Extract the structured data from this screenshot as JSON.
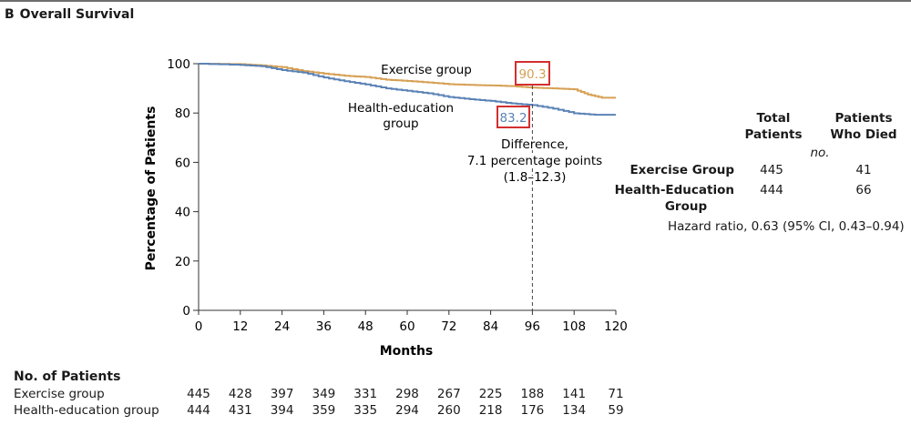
{
  "panel": {
    "letter": "B",
    "title": "Overall Survival"
  },
  "chart_data": {
    "type": "line",
    "title": "Overall Survival",
    "xlabel": "Months",
    "ylabel": "Percentage of Patients",
    "xlim": [
      0,
      120
    ],
    "ylim": [
      0,
      100
    ],
    "xticks": [
      0,
      12,
      24,
      36,
      48,
      60,
      72,
      84,
      96,
      108,
      120
    ],
    "yticks": [
      0,
      20,
      40,
      60,
      80,
      100
    ],
    "series": [
      {
        "name": "Exercise group",
        "color": "#d6a054",
        "points": [
          [
            0,
            100
          ],
          [
            12,
            99.8
          ],
          [
            18,
            99.3
          ],
          [
            24,
            98.6
          ],
          [
            30,
            97
          ],
          [
            36,
            96
          ],
          [
            42,
            95.1
          ],
          [
            48,
            94.6
          ],
          [
            54,
            93.5
          ],
          [
            60,
            93
          ],
          [
            66,
            92.4
          ],
          [
            72,
            91.7
          ],
          [
            78,
            91.4
          ],
          [
            84,
            91.2
          ],
          [
            90,
            90.9
          ],
          [
            96,
            90.3
          ],
          [
            102,
            90
          ],
          [
            108,
            89.6
          ],
          [
            112,
            87.5
          ],
          [
            116,
            86.2
          ],
          [
            120,
            86.2
          ]
        ]
      },
      {
        "name": "Health-education group",
        "color": "#5b82b5",
        "points": [
          [
            0,
            100
          ],
          [
            12,
            99.5
          ],
          [
            18,
            99
          ],
          [
            24,
            97.4
          ],
          [
            30,
            96.4
          ],
          [
            36,
            94.4
          ],
          [
            42,
            92.9
          ],
          [
            48,
            91.6
          ],
          [
            54,
            90
          ],
          [
            60,
            89
          ],
          [
            66,
            88
          ],
          [
            72,
            86.5
          ],
          [
            78,
            85.6
          ],
          [
            84,
            84.9
          ],
          [
            90,
            83.9
          ],
          [
            96,
            83.2
          ],
          [
            102,
            81.8
          ],
          [
            108,
            79.9
          ],
          [
            114,
            79.3
          ],
          [
            120,
            79.3
          ]
        ]
      }
    ],
    "annotations": {
      "exercise_label": "Exercise group",
      "health_label_line1": "Health-education",
      "health_label_line2": "group",
      "exercise_value": "90.3",
      "health_value": "83.2",
      "marker_month": 96,
      "difference_line1": "Difference,",
      "difference_line2": "7.1 percentage points",
      "difference_line3": "(1.8–12.3)"
    }
  },
  "summary_table": {
    "col_total_line1": "Total",
    "col_total_line2": "Patients",
    "col_died_line1": "Patients",
    "col_died_line2": "Who Died",
    "unit": "no.",
    "rows": [
      {
        "label": "Exercise Group",
        "total": "445",
        "died": "41"
      },
      {
        "label_line1": "Health-Education",
        "label_line2": "Group",
        "total": "444",
        "died": "66"
      }
    ],
    "hazard_ratio": "Hazard ratio, 0.63 (95% CI, 0.43–0.94)"
  },
  "patients_at_risk": {
    "title": "No. of Patients",
    "rows": [
      {
        "label": "Exercise group",
        "values": [
          "445",
          "428",
          "397",
          "349",
          "331",
          "298",
          "267",
          "225",
          "188",
          "141",
          "71"
        ]
      },
      {
        "label": "Health-education group",
        "values": [
          "444",
          "431",
          "394",
          "359",
          "335",
          "294",
          "260",
          "218",
          "176",
          "134",
          "59"
        ]
      }
    ]
  }
}
